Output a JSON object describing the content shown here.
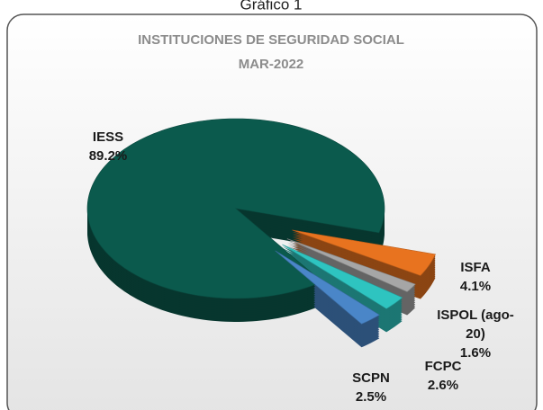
{
  "caption": "Gráfico 1",
  "chart_data": {
    "type": "pie3d",
    "title": "INSTITUCIONES DE SEGURIDAD SOCIAL",
    "subtitle": "MAR-2022",
    "categories": [
      "IESS",
      "ISFA",
      "ISPOL (ago-20)",
      "FCPC",
      "SCPN"
    ],
    "values": [
      89.2,
      4.1,
      1.6,
      2.6,
      2.5
    ],
    "value_labels": [
      "89.2%",
      "4.1%",
      "1.6%",
      "2.6%",
      "2.5%"
    ],
    "colors": [
      "#0b5a4d",
      "#e8731f",
      "#a6a6a6",
      "#2ec4c0",
      "#4a86c8"
    ]
  }
}
